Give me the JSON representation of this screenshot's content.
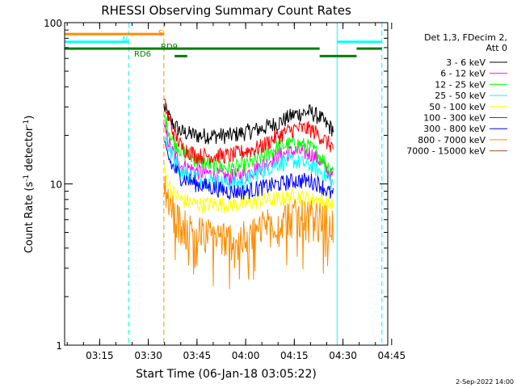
{
  "chart_data": {
    "type": "line",
    "title": "RHESSI Observing Summary Count Rates",
    "xlabel": "Start Time (06-Jan-18 03:05:22)",
    "ylabel_main": "Count Rate (s",
    "ylabel_sup1": "-1",
    "ylabel_mid": " detector",
    "ylabel_sup2": "-1",
    "ylabel_end": ")",
    "x_range_min": [
      3.07,
      4.73
    ],
    "y_scale": "log",
    "ylim": [
      1,
      100
    ],
    "x_ticks": [
      {
        "t": 3.25,
        "label": "03:15"
      },
      {
        "t": 3.5,
        "label": "03:30"
      },
      {
        "t": 3.75,
        "label": "03:45"
      },
      {
        "t": 4.0,
        "label": "04:00"
      },
      {
        "t": 4.25,
        "label": "04:15"
      },
      {
        "t": 4.5,
        "label": "04:30"
      },
      {
        "t": 4.75,
        "label": "04:45"
      }
    ],
    "y_ticks": [
      {
        "v": 1,
        "label": "1"
      },
      {
        "v": 10,
        "label": "10"
      },
      {
        "v": 100,
        "label": "100"
      }
    ],
    "legend_header": [
      "Det 1,3, FDecim 2,",
      "Att 0"
    ],
    "legend_placement": "right",
    "series": [
      {
        "name": "3 - 6 keV",
        "color": "#000000",
        "points": [
          [
            3.58,
            30
          ],
          [
            3.62,
            24
          ],
          [
            3.67,
            21
          ],
          [
            3.75,
            20
          ],
          [
            3.83,
            20
          ],
          [
            3.92,
            20
          ],
          [
            4.0,
            21
          ],
          [
            4.08,
            22
          ],
          [
            4.17,
            24
          ],
          [
            4.25,
            27
          ],
          [
            4.33,
            28
          ],
          [
            4.38,
            26
          ],
          [
            4.42,
            23
          ],
          [
            4.45,
            22
          ]
        ]
      },
      {
        "name": "6 - 12 keV",
        "color": "#ff00ff",
        "points": [
          [
            3.58,
            22
          ],
          [
            3.62,
            16
          ],
          [
            3.67,
            13
          ],
          [
            3.75,
            12
          ],
          [
            3.83,
            11.5
          ],
          [
            3.92,
            11
          ],
          [
            4.0,
            11.5
          ],
          [
            4.08,
            13
          ],
          [
            4.17,
            15
          ],
          [
            4.25,
            16
          ],
          [
            4.33,
            15.5
          ],
          [
            4.38,
            14
          ],
          [
            4.42,
            12
          ],
          [
            4.45,
            11
          ]
        ]
      },
      {
        "name": "12 - 25 keV",
        "color": "#00ff00",
        "points": [
          [
            3.58,
            26
          ],
          [
            3.62,
            19
          ],
          [
            3.67,
            16
          ],
          [
            3.75,
            14
          ],
          [
            3.83,
            13
          ],
          [
            3.92,
            12.5
          ],
          [
            4.0,
            13
          ],
          [
            4.08,
            14.5
          ],
          [
            4.17,
            17
          ],
          [
            4.25,
            18
          ],
          [
            4.33,
            17
          ],
          [
            4.38,
            15
          ],
          [
            4.42,
            13
          ],
          [
            4.45,
            12
          ]
        ]
      },
      {
        "name": "25 - 50 keV",
        "color": "#00ffff",
        "points": [
          [
            3.58,
            20
          ],
          [
            3.62,
            15
          ],
          [
            3.67,
            12
          ],
          [
            3.75,
            11
          ],
          [
            3.83,
            10.5
          ],
          [
            3.92,
            10
          ],
          [
            4.0,
            10.5
          ],
          [
            4.08,
            12
          ],
          [
            4.17,
            13.5
          ],
          [
            4.25,
            14
          ],
          [
            4.33,
            13
          ],
          [
            4.38,
            12
          ],
          [
            4.42,
            11
          ],
          [
            4.45,
            10
          ]
        ]
      },
      {
        "name": "50 - 100 keV",
        "color": "#ffff00",
        "points": [
          [
            3.58,
            12
          ],
          [
            3.62,
            9
          ],
          [
            3.67,
            8
          ],
          [
            3.75,
            7.5
          ],
          [
            3.83,
            7.5
          ],
          [
            3.92,
            7.5
          ],
          [
            4.0,
            7.5
          ],
          [
            4.08,
            8
          ],
          [
            4.17,
            8
          ],
          [
            4.25,
            8.5
          ],
          [
            4.33,
            8
          ],
          [
            4.38,
            8
          ],
          [
            4.42,
            7.5
          ],
          [
            4.45,
            7.5
          ]
        ]
      },
      {
        "name": "100 - 300 keV",
        "color": "#ff0000",
        "points": [
          [
            3.58,
            32
          ],
          [
            3.62,
            22
          ],
          [
            3.67,
            17
          ],
          [
            3.75,
            15
          ],
          [
            3.83,
            15
          ],
          [
            3.92,
            15
          ],
          [
            4.0,
            16
          ],
          [
            4.08,
            17
          ],
          [
            4.17,
            20
          ],
          [
            4.25,
            22
          ],
          [
            4.33,
            22
          ],
          [
            4.38,
            20
          ],
          [
            4.42,
            18
          ],
          [
            4.45,
            17
          ]
        ]
      },
      {
        "name": "300 - 800 keV",
        "color": "#0000ff",
        "points": [
          [
            3.58,
            17
          ],
          [
            3.62,
            13
          ],
          [
            3.67,
            11
          ],
          [
            3.75,
            10
          ],
          [
            3.83,
            9.5
          ],
          [
            3.92,
            9
          ],
          [
            4.0,
            9
          ],
          [
            4.08,
            9.5
          ],
          [
            4.17,
            10
          ],
          [
            4.25,
            10.5
          ],
          [
            4.33,
            10.5
          ],
          [
            4.38,
            10
          ],
          [
            4.42,
            9
          ],
          [
            4.45,
            8.5
          ]
        ]
      },
      {
        "name": "800 - 7000 keV",
        "color": "#ff8c00",
        "points": [
          [
            3.58,
            10
          ],
          [
            3.62,
            7
          ],
          [
            3.67,
            5.5
          ],
          [
            3.75,
            5
          ],
          [
            3.83,
            4.8
          ],
          [
            3.92,
            4.6
          ],
          [
            4.0,
            4.6
          ],
          [
            4.08,
            5.5
          ],
          [
            4.17,
            6.2
          ],
          [
            4.25,
            6.3
          ],
          [
            4.33,
            6.2
          ],
          [
            4.38,
            6
          ],
          [
            4.42,
            5.8
          ],
          [
            4.45,
            5.5
          ]
        ]
      },
      {
        "name": "7000 - 15000 keV",
        "color": "#a0522d",
        "points": []
      }
    ],
    "annotations": [
      {
        "text": "S",
        "color": "#ff8c00"
      },
      {
        "text": "N",
        "color": "#00ffff"
      },
      {
        "text": "RD6",
        "color": "#008000"
      },
      {
        "text": "RD9",
        "color": "#008000"
      }
    ],
    "flag_bars": [
      {
        "color": "#ff8c00",
        "t0": 3.07,
        "t1": 3.58,
        "v": 85
      },
      {
        "color": "#00ffff",
        "t0": 3.07,
        "t1": 3.4,
        "v": 76
      },
      {
        "color": "#00ffff",
        "t0": 4.47,
        "t1": 4.7,
        "v": 76
      },
      {
        "color": "#008000",
        "t0": 3.07,
        "t1": 4.38,
        "v": 69
      },
      {
        "color": "#008000",
        "t0": 4.38,
        "t1": 4.57,
        "v": 62
      },
      {
        "color": "#008000",
        "t0": 4.57,
        "t1": 4.7,
        "v": 69
      },
      {
        "color": "#008000",
        "t0": 3.635,
        "t1": 3.7,
        "v": 62
      }
    ],
    "vlines": [
      {
        "t": 3.07,
        "color": "#00ffff",
        "style": "solid"
      },
      {
        "t": 3.4,
        "color": "#00ffff",
        "style": "dashed"
      },
      {
        "t": 3.58,
        "color": "#ff8c00",
        "style": "dashed"
      },
      {
        "t": 4.47,
        "color": "#00ffff",
        "style": "solid"
      },
      {
        "t": 4.7,
        "color": "#00ffff",
        "style": "dashed"
      }
    ],
    "grid": false
  },
  "footer_date": "2-Sep-2022 14:00"
}
